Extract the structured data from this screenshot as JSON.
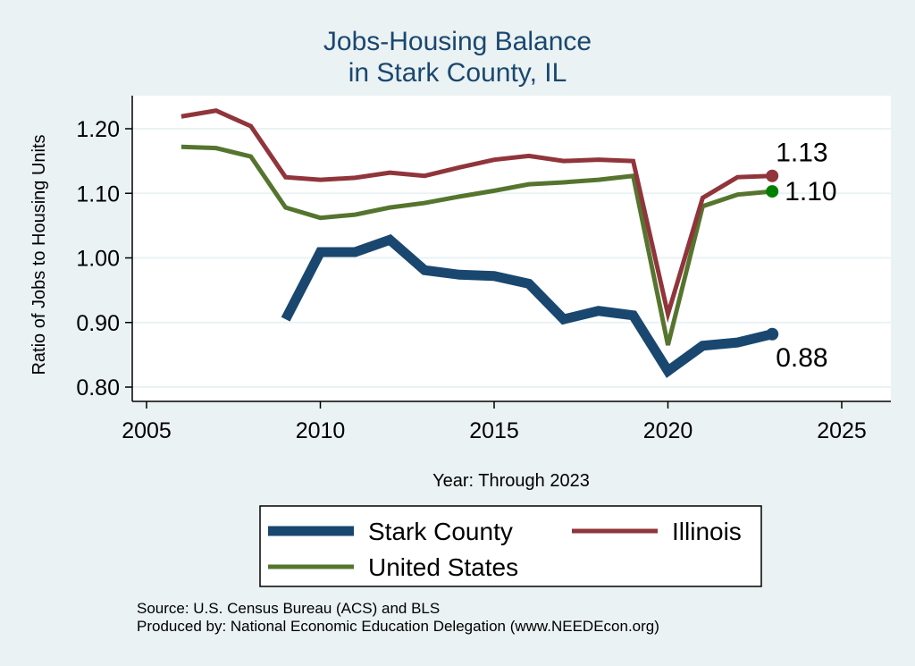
{
  "chart_data": {
    "type": "line",
    "title": "Jobs-Housing Balance",
    "subtitle": "in Stark County, IL",
    "xlabel": "Year: Through 2023",
    "ylabel": "Ratio of Jobs to Housing Units",
    "xlim": [
      2005,
      2026.5
    ],
    "ylim": [
      0.78,
      1.25
    ],
    "xticks": [
      2005,
      2010,
      2015,
      2020,
      2025
    ],
    "yticks": [
      0.8,
      0.9,
      1.0,
      1.1,
      1.2
    ],
    "ytick_labels": [
      "0.80",
      "0.90",
      "1.00",
      "1.10",
      "1.20"
    ],
    "grid": true,
    "legend_position": "bottom",
    "series": [
      {
        "name": "Stark County",
        "color": "#1a476f",
        "x": [
          2009,
          2010,
          2011,
          2012,
          2013,
          2014,
          2015,
          2016,
          2017,
          2018,
          2019,
          2020,
          2021,
          2022,
          2023
        ],
        "values": [
          0.905,
          1.009,
          1.009,
          1.028,
          0.981,
          0.974,
          0.972,
          0.96,
          0.905,
          0.918,
          0.911,
          0.825,
          0.864,
          0.869,
          0.882
        ],
        "end_label": "0.88"
      },
      {
        "name": "Illinois",
        "color": "#90353b",
        "x": [
          2006,
          2007,
          2008,
          2009,
          2010,
          2011,
          2012,
          2013,
          2014,
          2015,
          2016,
          2017,
          2018,
          2019,
          2020,
          2021,
          2022,
          2023
        ],
        "values": [
          1.219,
          1.228,
          1.204,
          1.125,
          1.121,
          1.124,
          1.132,
          1.127,
          1.14,
          1.152,
          1.158,
          1.15,
          1.152,
          1.15,
          0.913,
          1.093,
          1.125,
          1.127
        ],
        "end_label": "1.13"
      },
      {
        "name": "United States",
        "color": "#55752f",
        "x": [
          2006,
          2007,
          2008,
          2009,
          2010,
          2011,
          2012,
          2013,
          2014,
          2015,
          2016,
          2017,
          2018,
          2019,
          2020,
          2021,
          2022,
          2023
        ],
        "values": [
          1.172,
          1.17,
          1.157,
          1.078,
          1.062,
          1.067,
          1.078,
          1.085,
          1.095,
          1.104,
          1.114,
          1.117,
          1.121,
          1.127,
          0.865,
          1.08,
          1.098,
          1.103
        ],
        "end_label": "1.10",
        "marker_color": "#008000"
      }
    ]
  },
  "source": "Source: U.S. Census Bureau (ACS) and BLS",
  "producer": "Produced by: National Economic Education Delegation (www.NEEDEcon.org)"
}
